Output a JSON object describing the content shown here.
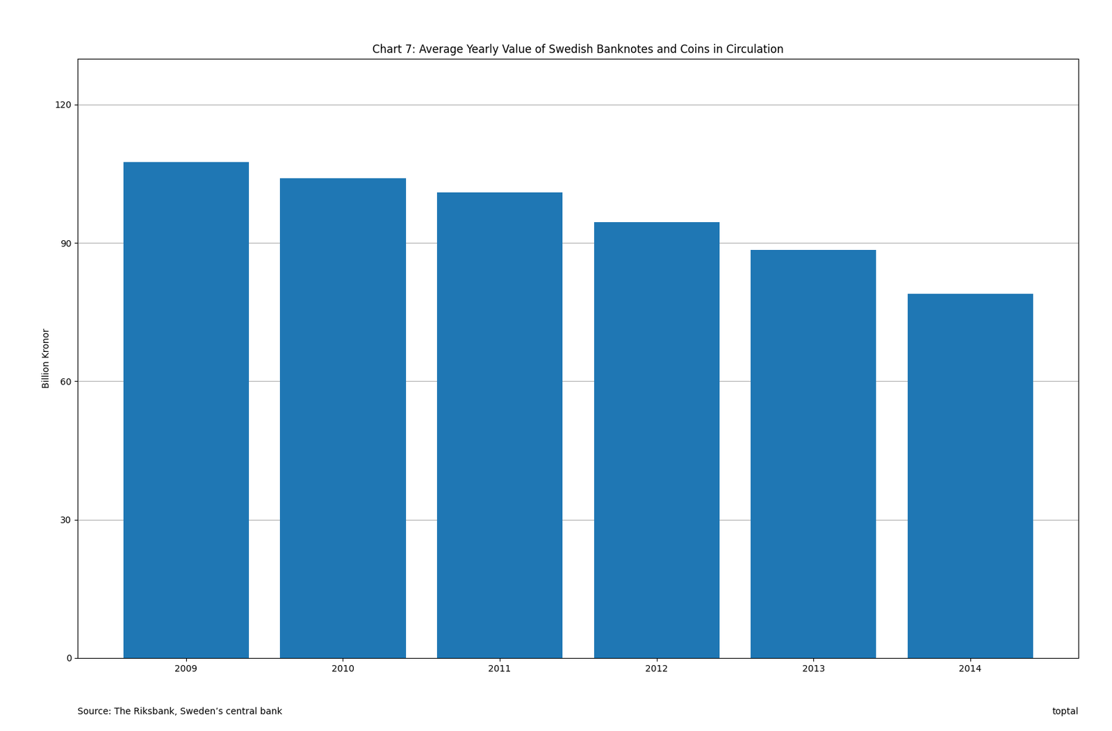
{
  "chart_data": {
    "type": "bar",
    "title": "Chart 7: Average Yearly Value of Swedish Banknotes and Coins in Circulation",
    "ylabel": "Billion Kronor",
    "categories": [
      "2009",
      "2010",
      "2011",
      "2012",
      "2013",
      "2014"
    ],
    "values": [
      107.5,
      104.0,
      101.0,
      94.5,
      88.5,
      79.0
    ],
    "ylim": [
      0,
      130
    ],
    "yticks": [
      0,
      30,
      60,
      90,
      120
    ],
    "grid": true,
    "annotations": [
      "Source: The Riksbank, Sweden’s central bank",
      "toptal"
    ]
  }
}
